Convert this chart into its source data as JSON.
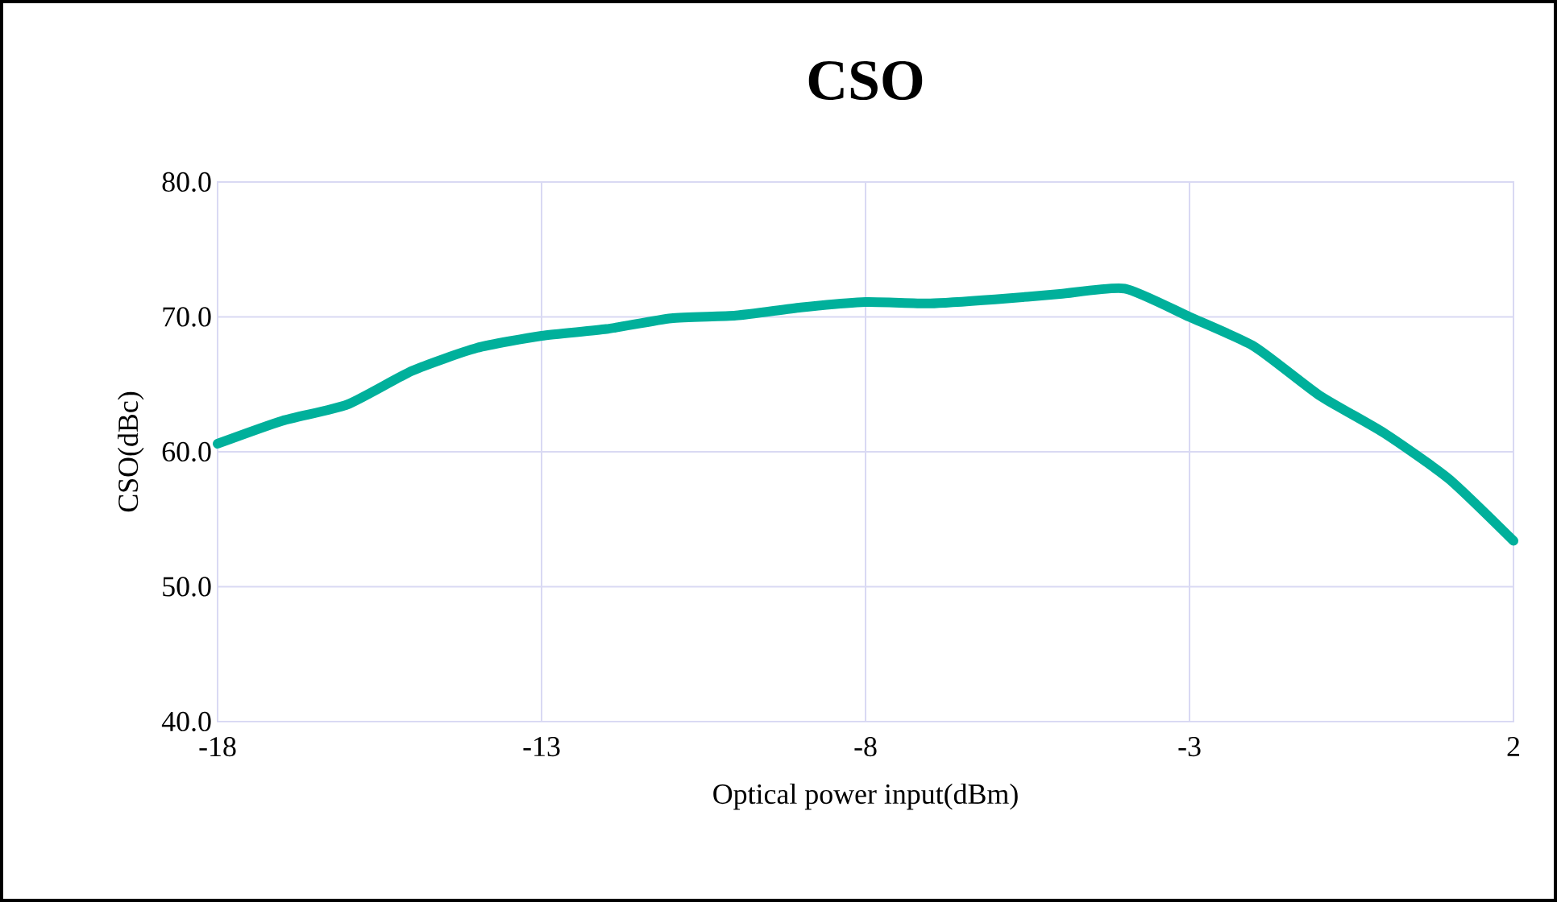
{
  "chart_data": {
    "type": "line",
    "title": "CSO",
    "xlabel": "Optical power input(dBm)",
    "ylabel": "CSO(dBc)",
    "x": [
      -18,
      -17,
      -16,
      -15,
      -14,
      -13,
      -12,
      -11,
      -10,
      -9,
      -8,
      -7,
      -6,
      -5,
      -4,
      -3,
      -2,
      -1,
      0,
      1,
      2
    ],
    "series": [
      {
        "color": "#00b09b",
        "values": [
          60.6,
          62.3,
          63.5,
          66.0,
          67.7,
          68.6,
          69.1,
          69.9,
          70.1,
          70.7,
          71.1,
          71.0,
          71.3,
          71.7,
          72.1,
          70.0,
          67.8,
          64.2,
          61.4,
          58.0,
          53.4
        ]
      }
    ],
    "xlim": [
      -18,
      2
    ],
    "xticks": [
      -18,
      -13,
      -8,
      -3,
      2
    ],
    "ylim": [
      40,
      80
    ],
    "yticks": [
      {
        "value": 40,
        "label": "40.0"
      },
      {
        "value": 50,
        "label": "50.0"
      },
      {
        "value": 60,
        "label": "60.0"
      },
      {
        "value": 70,
        "label": "70.0"
      },
      {
        "value": 80,
        "label": "80.0"
      }
    ],
    "grid": true,
    "marker": "none",
    "line_style": "solid"
  }
}
